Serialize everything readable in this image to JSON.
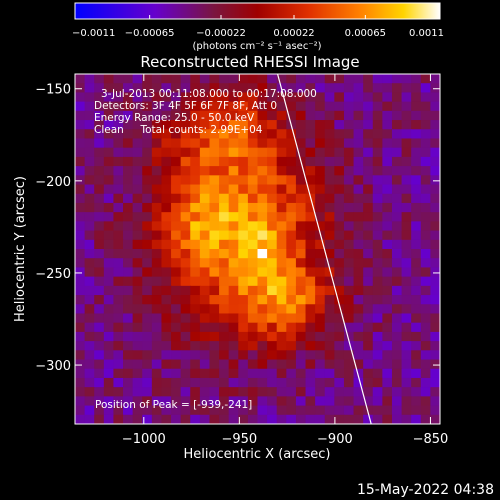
{
  "chart_data": {
    "type": "heatmap",
    "title": "Reconstructed RHESSI Image",
    "xlabel": "Heliocentric X (arcsec)",
    "ylabel": "Heliocentric Y (arcsec)",
    "xlim": [
      -1036,
      -845
    ],
    "ylim": [
      -332,
      -142
    ],
    "xticks": [
      {
        "value": -1000,
        "label": "−1000"
      },
      {
        "value": -950,
        "label": "−950"
      },
      {
        "value": -900,
        "label": "−900"
      },
      {
        "value": -850,
        "label": "−850"
      }
    ],
    "yticks": [
      {
        "value": -150,
        "label": "−150"
      },
      {
        "value": -200,
        "label": "−200"
      },
      {
        "value": -250,
        "label": "−250"
      },
      {
        "value": -300,
        "label": "−300"
      }
    ],
    "colorbar": {
      "min": -0.0011,
      "max": 0.0011,
      "ticks": [
        {
          "value": -0.0011,
          "label": "−0.0011"
        },
        {
          "value": -0.00065,
          "label": "−0.00065"
        },
        {
          "value": -0.00022,
          "label": "−0.00022"
        },
        {
          "value": 0.00022,
          "label": "0.00022"
        },
        {
          "value": 0.00065,
          "label": "0.00065"
        },
        {
          "value": 0.0011,
          "label": "0.0011"
        }
      ],
      "units_label": "(photons cm⁻² s⁻¹ asec⁻²)"
    },
    "annotations": {
      "time_range": "3-Jul-2013 00:11:08.000 to 00:17:08.000",
      "detectors": "Detectors: 3F 4F 5F 6F 7F 8F, Att 0",
      "energy_range": "Energy Range: 25.0 - 50.0 keV",
      "clean_counts": "Clean     Total counts: 2.99E+04",
      "peak": "Position of Peak = [-939,-241]"
    },
    "peak": {
      "x": -939,
      "y": -241
    },
    "limb_line": {
      "x_top": -930,
      "y_top": -142,
      "x_bottom": -881,
      "y_bottom": -332
    },
    "heatmap": {
      "grid": [
        38,
        38
      ],
      "sources": [
        {
          "x": -948,
          "y": -228,
          "sx": 30,
          "sy": 38,
          "amp": 0.00105
        },
        {
          "x": -939,
          "y": -241,
          "sx": 10,
          "sy": 10,
          "amp": 0.00035
        },
        {
          "x": -925,
          "y": -267,
          "sx": 16,
          "sy": 14,
          "amp": 0.0006
        },
        {
          "x": -974,
          "y": -222,
          "sx": 13,
          "sy": 15,
          "amp": 0.00035
        },
        {
          "x": -955,
          "y": -172,
          "sx": 18,
          "sy": 16,
          "amp": 0.0005
        },
        {
          "x": -985,
          "y": -182,
          "sx": 12,
          "sy": 12,
          "amp": 0.00025
        }
      ],
      "background": -0.00042
    }
  },
  "timestamp": "15-May-2022 04:38",
  "colors": {
    "background": "#000000",
    "text": "#ffffff",
    "limb_line": "#ffffff"
  }
}
